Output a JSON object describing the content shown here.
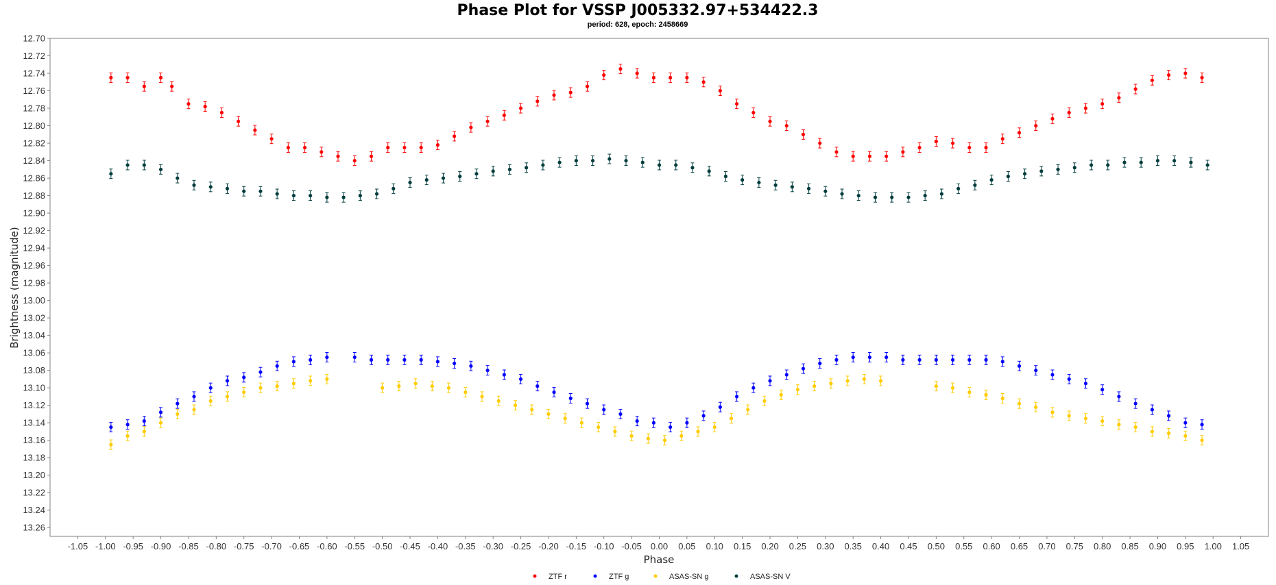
{
  "chart_data": {
    "type": "scatter",
    "title": "Phase Plot for VSSP J005332.97+534422.3",
    "subtitle": "period: 628, epoch: 2458669",
    "xlabel": "Phase",
    "ylabel": "Brightness (magnitude)",
    "xlim": [
      -1.1,
      1.1
    ],
    "ylim": [
      13.27,
      12.7
    ],
    "y_inverted": true,
    "x_ticks": [
      "-1.05",
      "-1.00",
      "-0.95",
      "-0.90",
      "-0.85",
      "-0.80",
      "-0.75",
      "-0.70",
      "-0.65",
      "-0.60",
      "-0.55",
      "-0.50",
      "-0.45",
      "-0.40",
      "-0.35",
      "-0.30",
      "-0.25",
      "-0.20",
      "-0.15",
      "-0.10",
      "-0.05",
      "0.00",
      "0.05",
      "0.10",
      "0.15",
      "0.20",
      "0.25",
      "0.30",
      "0.35",
      "0.40",
      "0.45",
      "0.50",
      "0.55",
      "0.60",
      "0.65",
      "0.70",
      "0.75",
      "0.80",
      "0.85",
      "0.90",
      "0.95",
      "1.00",
      "1.05"
    ],
    "y_ticks": [
      "12.70",
      "12.72",
      "12.74",
      "12.76",
      "12.78",
      "12.80",
      "12.82",
      "12.84",
      "12.86",
      "12.88",
      "12.90",
      "12.92",
      "12.94",
      "12.96",
      "12.98",
      "13.00",
      "13.02",
      "13.04",
      "13.06",
      "13.08",
      "13.10",
      "13.12",
      "13.14",
      "13.16",
      "13.18",
      "13.20",
      "13.22",
      "13.24",
      "13.26"
    ],
    "grid": false,
    "legend_position": "bottom-center",
    "series": [
      {
        "name": "ZTF r",
        "color": "#ff0000",
        "x": [
          -0.99,
          -0.96,
          -0.93,
          -0.9,
          -0.88,
          -0.85,
          -0.82,
          -0.79,
          -0.76,
          -0.73,
          -0.7,
          -0.67,
          -0.64,
          -0.61,
          -0.58,
          -0.55,
          -0.52,
          -0.49,
          -0.46,
          -0.43,
          -0.4,
          -0.37,
          -0.34,
          -0.31,
          -0.28,
          -0.25,
          -0.22,
          -0.19,
          -0.16,
          -0.13,
          -0.1,
          -0.07,
          -0.04,
          -0.01,
          0.02,
          0.05,
          0.08,
          0.11,
          0.14,
          0.17,
          0.2,
          0.23,
          0.26,
          0.29,
          0.32,
          0.35,
          0.38,
          0.41,
          0.44,
          0.47,
          0.5,
          0.53,
          0.56,
          0.59,
          0.62,
          0.65,
          0.68,
          0.71,
          0.74,
          0.77,
          0.8,
          0.83,
          0.86,
          0.89,
          0.92,
          0.95,
          0.98
        ],
        "y": [
          12.745,
          12.745,
          12.755,
          12.745,
          12.755,
          12.775,
          12.778,
          12.785,
          12.795,
          12.805,
          12.815,
          12.825,
          12.825,
          12.83,
          12.835,
          12.84,
          12.835,
          12.825,
          12.825,
          12.825,
          12.822,
          12.812,
          12.802,
          12.795,
          12.788,
          12.78,
          12.772,
          12.765,
          12.762,
          12.755,
          12.742,
          12.735,
          12.74,
          12.745,
          12.745,
          12.745,
          12.75,
          12.76,
          12.775,
          12.785,
          12.795,
          12.8,
          12.81,
          12.82,
          12.83,
          12.835,
          12.835,
          12.835,
          12.83,
          12.825,
          12.818,
          12.82,
          12.825,
          12.825,
          12.815,
          12.808,
          12.8,
          12.792,
          12.785,
          12.78,
          12.775,
          12.768,
          12.758,
          12.748,
          12.742,
          12.74,
          12.745
        ]
      },
      {
        "name": "ZTF g",
        "color": "#0000ff",
        "x": [
          -0.99,
          -0.96,
          -0.93,
          -0.9,
          -0.87,
          -0.84,
          -0.81,
          -0.78,
          -0.75,
          -0.72,
          -0.69,
          -0.66,
          -0.63,
          -0.6,
          -0.55,
          -0.52,
          -0.49,
          -0.46,
          -0.43,
          -0.4,
          -0.37,
          -0.34,
          -0.31,
          -0.28,
          -0.25,
          -0.22,
          -0.19,
          -0.16,
          -0.13,
          -0.1,
          -0.07,
          -0.04,
          -0.01,
          0.02,
          0.05,
          0.08,
          0.11,
          0.14,
          0.17,
          0.2,
          0.23,
          0.26,
          0.29,
          0.32,
          0.35,
          0.38,
          0.41,
          0.44,
          0.47,
          0.5,
          0.53,
          0.56,
          0.59,
          0.62,
          0.65,
          0.68,
          0.71,
          0.74,
          0.77,
          0.8,
          0.83,
          0.86,
          0.89,
          0.92,
          0.95,
          0.98
        ],
        "y": [
          13.145,
          13.142,
          13.138,
          13.128,
          13.118,
          13.11,
          13.1,
          13.092,
          13.088,
          13.082,
          13.075,
          13.07,
          13.068,
          13.065,
          13.065,
          13.068,
          13.068,
          13.068,
          13.068,
          13.07,
          13.072,
          13.075,
          13.08,
          13.085,
          13.09,
          13.098,
          13.105,
          13.112,
          13.118,
          13.125,
          13.13,
          13.138,
          13.14,
          13.145,
          13.14,
          13.132,
          13.122,
          13.11,
          13.1,
          13.092,
          13.085,
          13.078,
          13.072,
          13.068,
          13.065,
          13.065,
          13.065,
          13.068,
          13.068,
          13.068,
          13.068,
          13.068,
          13.068,
          13.07,
          13.075,
          13.08,
          13.085,
          13.09,
          13.095,
          13.102,
          13.11,
          13.118,
          13.125,
          13.132,
          13.14,
          13.142
        ]
      },
      {
        "name": "ASAS-SN g",
        "color": "#ffcc00",
        "x": [
          -0.99,
          -0.96,
          -0.93,
          -0.9,
          -0.87,
          -0.84,
          -0.81,
          -0.78,
          -0.75,
          -0.72,
          -0.69,
          -0.66,
          -0.63,
          -0.6,
          -0.5,
          -0.47,
          -0.44,
          -0.41,
          -0.38,
          -0.35,
          -0.32,
          -0.29,
          -0.26,
          -0.23,
          -0.2,
          -0.17,
          -0.14,
          -0.11,
          -0.08,
          -0.05,
          -0.02,
          0.01,
          0.04,
          0.07,
          0.1,
          0.13,
          0.16,
          0.19,
          0.22,
          0.25,
          0.28,
          0.31,
          0.34,
          0.37,
          0.4,
          0.5,
          0.53,
          0.56,
          0.59,
          0.62,
          0.65,
          0.68,
          0.71,
          0.74,
          0.77,
          0.8,
          0.83,
          0.86,
          0.89,
          0.92,
          0.95,
          0.98
        ],
        "y": [
          13.165,
          13.155,
          13.15,
          13.14,
          13.13,
          13.125,
          13.115,
          13.11,
          13.105,
          13.1,
          13.098,
          13.095,
          13.092,
          13.09,
          13.1,
          13.098,
          13.095,
          13.098,
          13.1,
          13.105,
          13.11,
          13.115,
          13.12,
          13.125,
          13.13,
          13.135,
          13.14,
          13.145,
          13.15,
          13.155,
          13.158,
          13.16,
          13.155,
          13.15,
          13.145,
          13.135,
          13.125,
          13.115,
          13.108,
          13.102,
          13.098,
          13.095,
          13.092,
          13.09,
          13.092,
          13.098,
          13.1,
          13.105,
          13.108,
          13.112,
          13.118,
          13.122,
          13.128,
          13.132,
          13.135,
          13.138,
          13.142,
          13.145,
          13.15,
          13.152,
          13.155,
          13.16
        ]
      },
      {
        "name": "ASAS-SN V",
        "color": "#003c3c",
        "x": [
          -0.99,
          -0.96,
          -0.93,
          -0.9,
          -0.87,
          -0.84,
          -0.81,
          -0.78,
          -0.75,
          -0.72,
          -0.69,
          -0.66,
          -0.63,
          -0.6,
          -0.57,
          -0.54,
          -0.51,
          -0.48,
          -0.45,
          -0.42,
          -0.39,
          -0.36,
          -0.33,
          -0.3,
          -0.27,
          -0.24,
          -0.21,
          -0.18,
          -0.15,
          -0.12,
          -0.09,
          -0.06,
          -0.03,
          0.0,
          0.03,
          0.06,
          0.09,
          0.12,
          0.15,
          0.18,
          0.21,
          0.24,
          0.27,
          0.3,
          0.33,
          0.36,
          0.39,
          0.42,
          0.45,
          0.48,
          0.51,
          0.54,
          0.57,
          0.6,
          0.63,
          0.66,
          0.69,
          0.72,
          0.75,
          0.78,
          0.81,
          0.84,
          0.87,
          0.9,
          0.93,
          0.96,
          0.99
        ],
        "y": [
          12.855,
          12.845,
          12.845,
          12.85,
          12.86,
          12.868,
          12.87,
          12.872,
          12.875,
          12.875,
          12.878,
          12.88,
          12.88,
          12.882,
          12.882,
          12.88,
          12.878,
          12.872,
          12.865,
          12.862,
          12.86,
          12.858,
          12.855,
          12.852,
          12.85,
          12.848,
          12.845,
          12.842,
          12.84,
          12.84,
          12.838,
          12.84,
          12.842,
          12.845,
          12.845,
          12.848,
          12.852,
          12.858,
          12.862,
          12.865,
          12.868,
          12.87,
          12.872,
          12.875,
          12.878,
          12.88,
          12.882,
          12.882,
          12.882,
          12.88,
          12.878,
          12.872,
          12.868,
          12.862,
          12.858,
          12.855,
          12.852,
          12.85,
          12.848,
          12.845,
          12.845,
          12.842,
          12.842,
          12.84,
          12.84,
          12.842,
          12.845
        ]
      }
    ]
  }
}
